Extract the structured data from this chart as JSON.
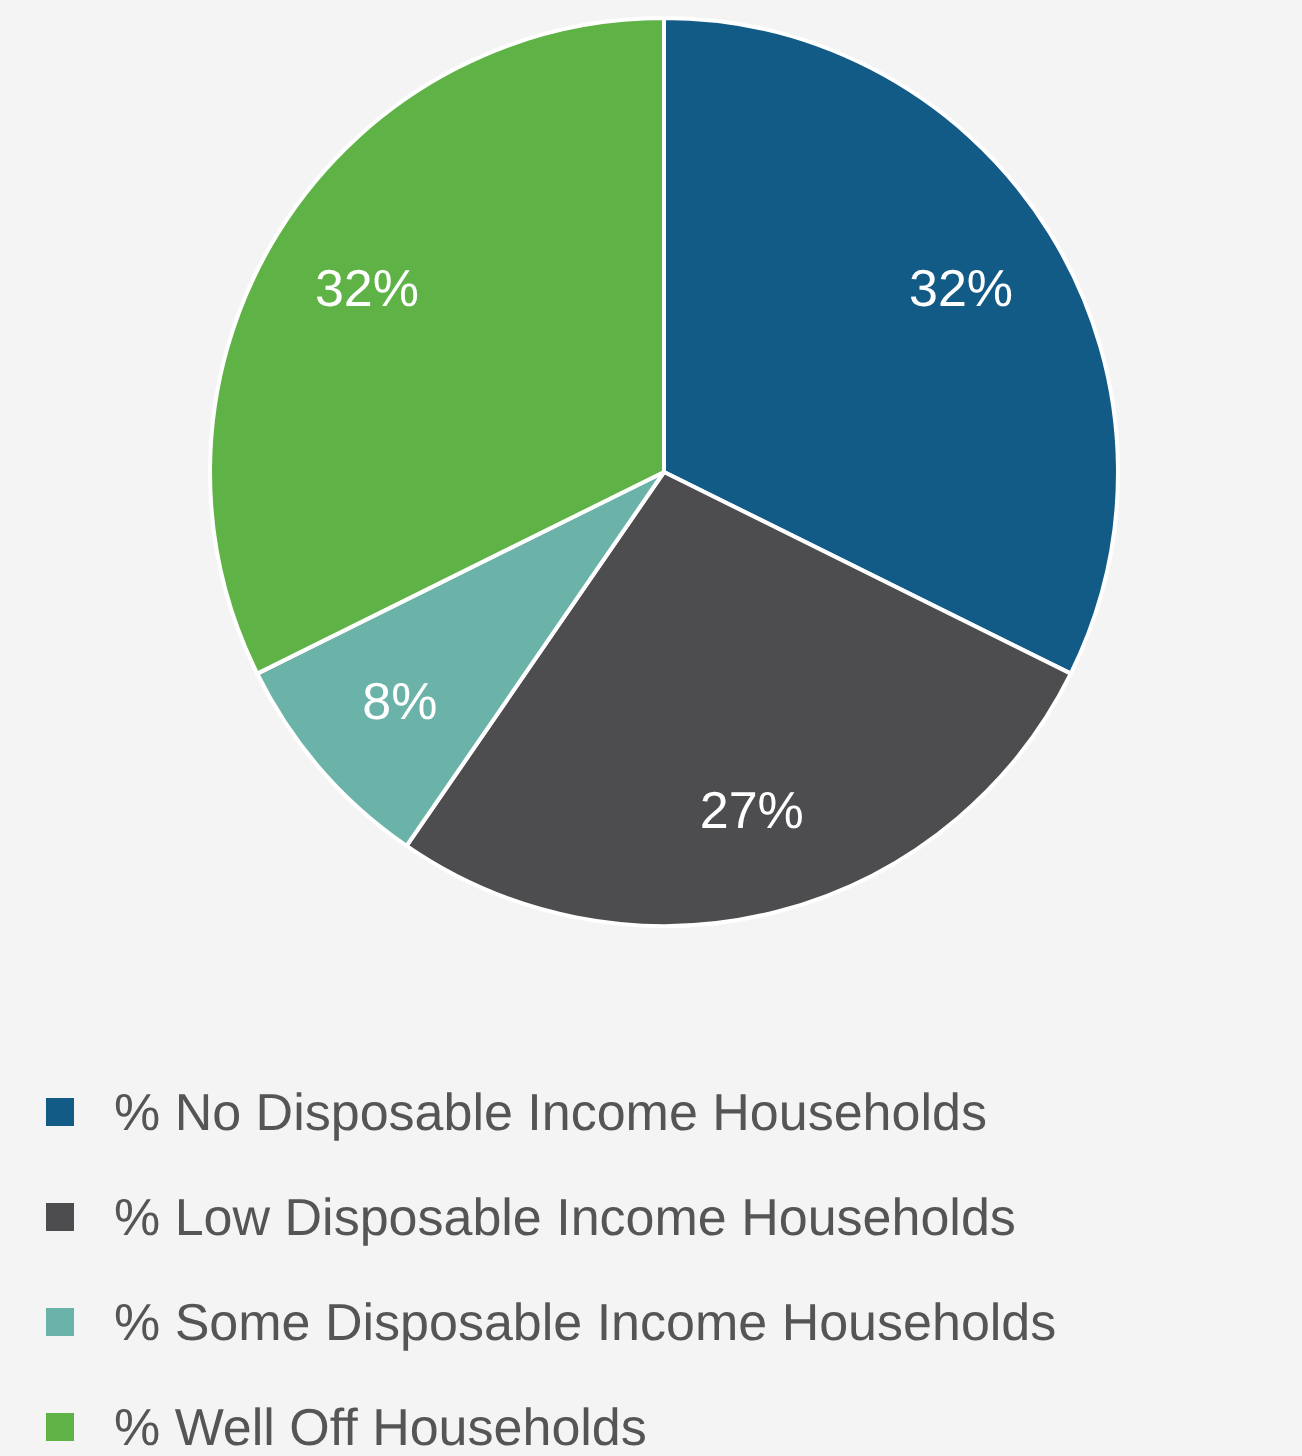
{
  "chart_data": {
    "type": "pie",
    "categories": [
      "% No Disposable Income Households",
      "% Low Disposable Income Households",
      "% Some Disposable Income Households",
      "% Well Off Households"
    ],
    "values": [
      32,
      27,
      8,
      32
    ],
    "colors": [
      "#135b87",
      "#4d4d4f",
      "#6bb3a8",
      "#5fb346"
    ],
    "value_labels": [
      "32%",
      "27%",
      "8%",
      "32%"
    ],
    "legend": "bottom"
  }
}
